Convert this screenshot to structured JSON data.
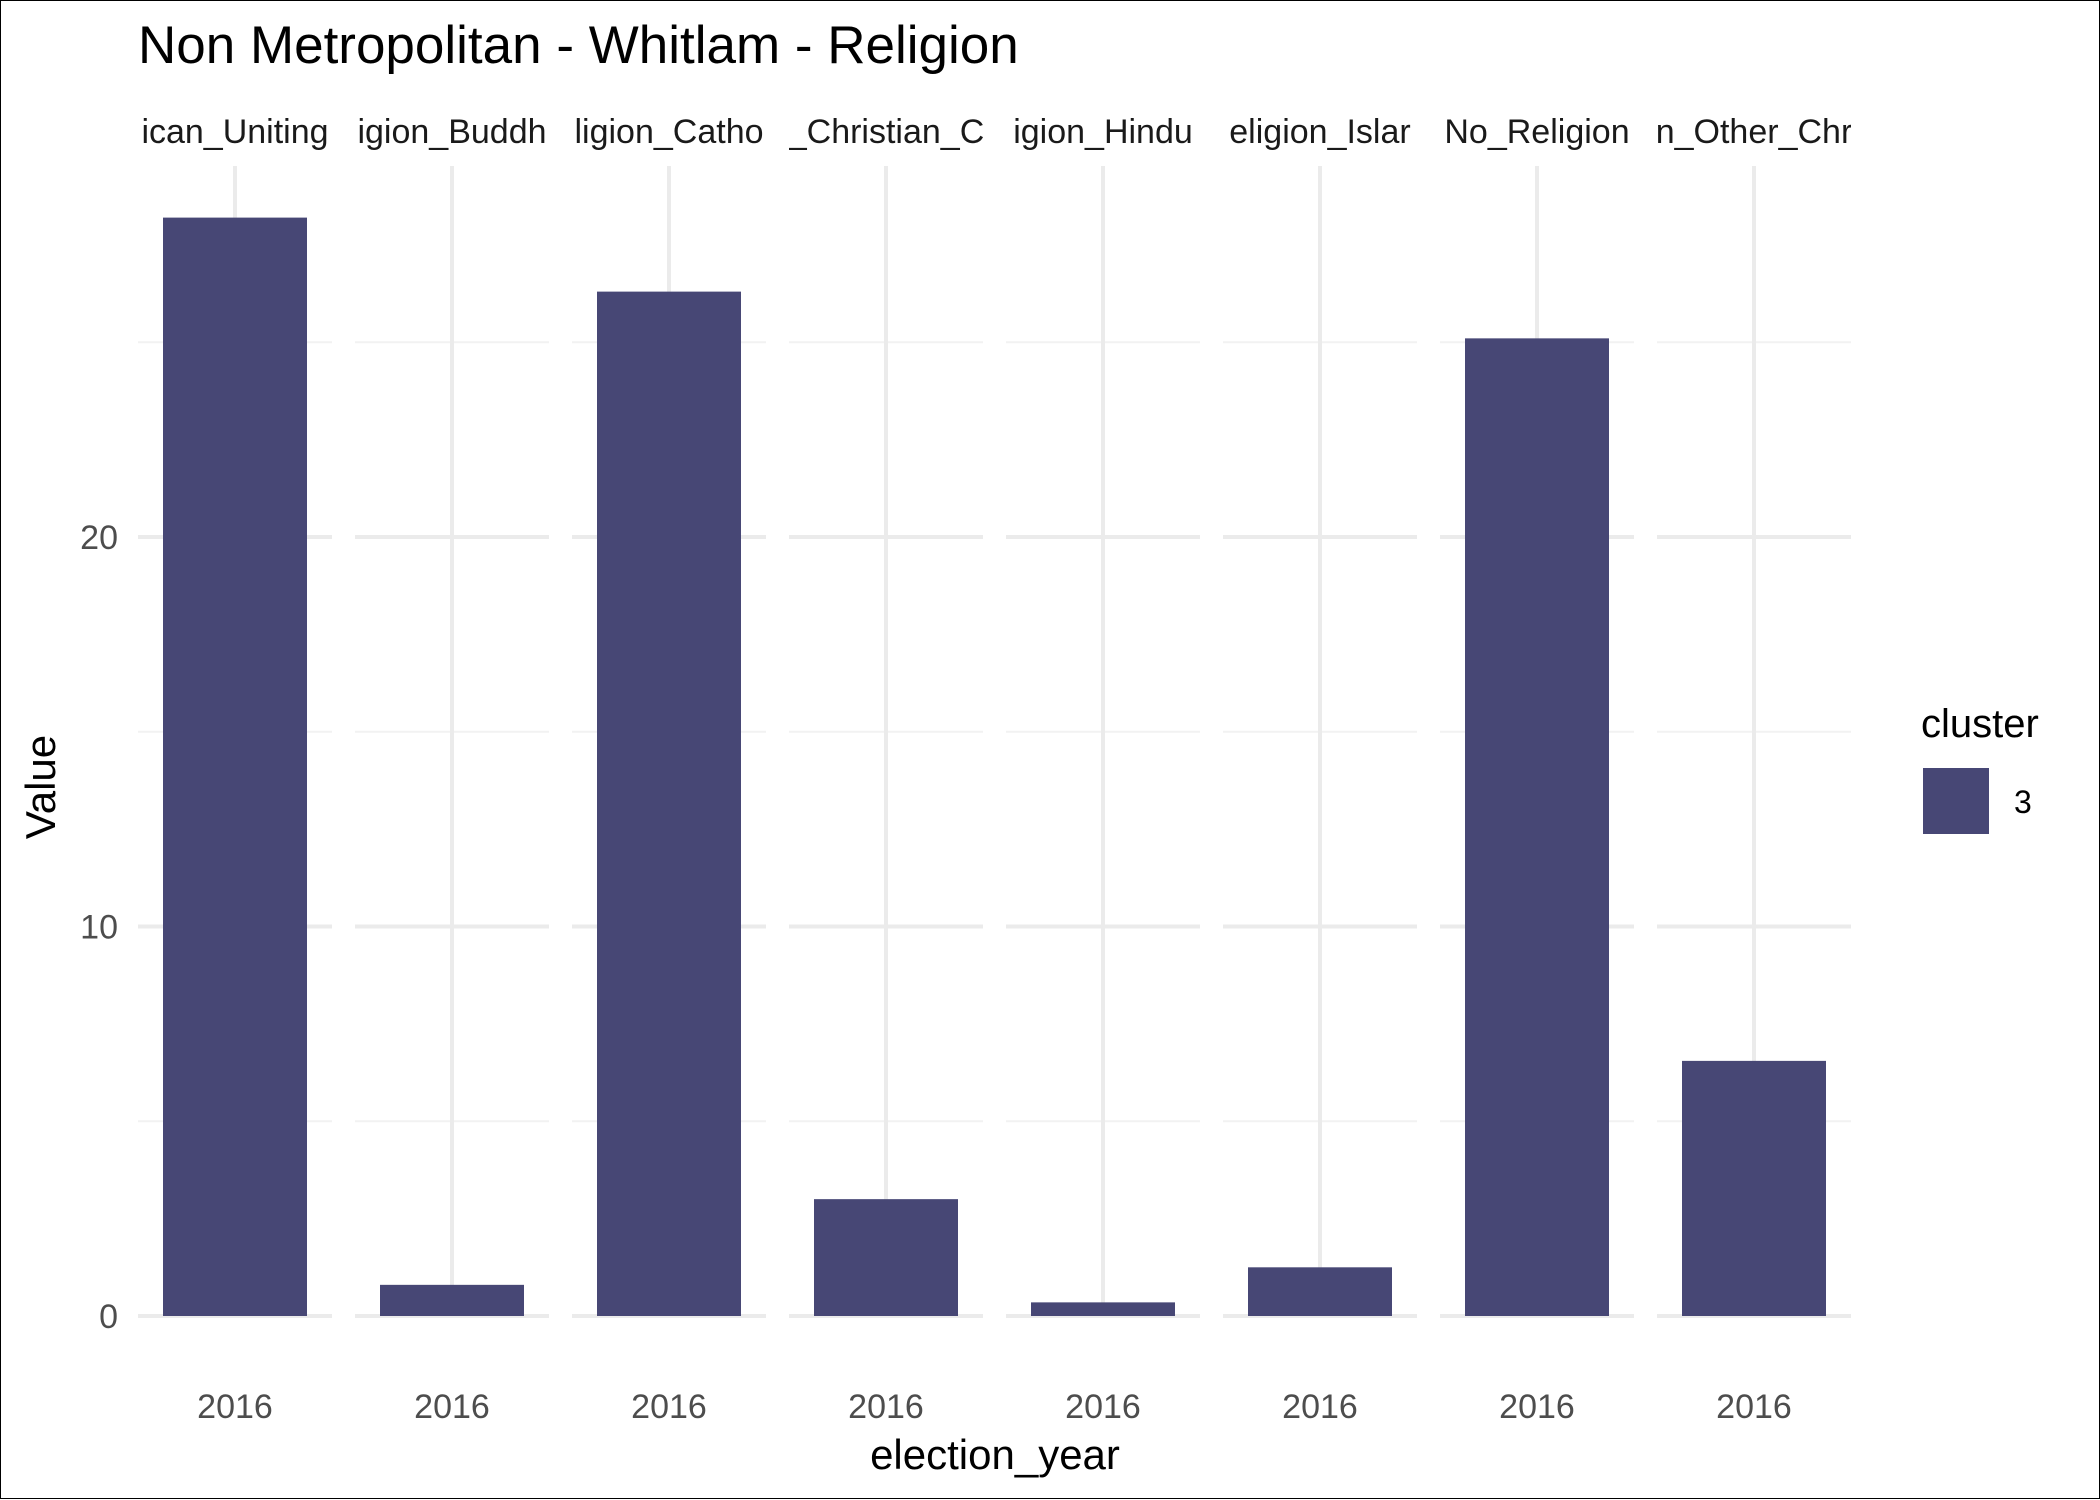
{
  "chart_data": {
    "type": "bar",
    "title": "Non Metropolitan - Whitlam - Religion",
    "xlabel": "election_year",
    "ylabel": "Value",
    "ylim": [
      0,
      29.5
    ],
    "y_ticks": [
      0,
      10,
      20
    ],
    "grid": true,
    "facets": [
      {
        "strip_label": "ican_Uniting",
        "category": "2016",
        "value": 28.2
      },
      {
        "strip_label": "igion_Buddh",
        "category": "2016",
        "value": 0.8
      },
      {
        "strip_label": "ligion_Catho",
        "category": "2016",
        "value": 26.3
      },
      {
        "strip_label": "_Christian_C",
        "category": "2016",
        "value": 3.0
      },
      {
        "strip_label": "igion_Hindu",
        "category": "2016",
        "value": 0.35
      },
      {
        "strip_label": "eligion_Islar",
        "category": "2016",
        "value": 1.25
      },
      {
        "strip_label": "No_Religion",
        "category": "2016",
        "value": 25.1
      },
      {
        "strip_label": "n_Other_Chr",
        "category": "2016",
        "value": 6.55
      }
    ],
    "legend": {
      "title": "cluster",
      "position": "right",
      "entries": [
        {
          "label": "3",
          "color": "#474775"
        }
      ]
    },
    "bar_color": "#474775"
  }
}
